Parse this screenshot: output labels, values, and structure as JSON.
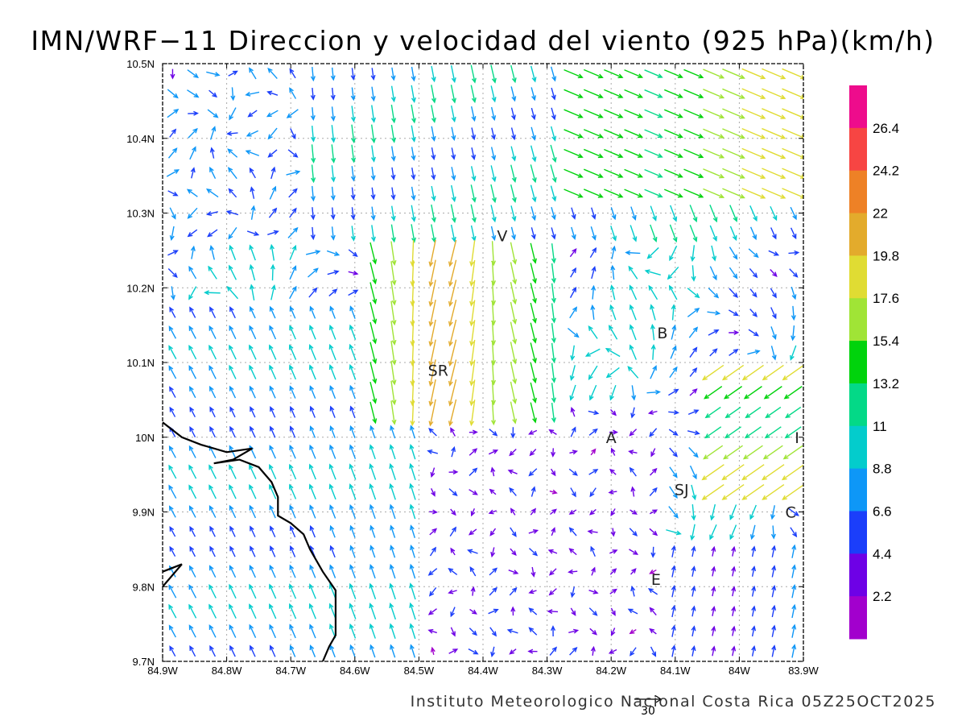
{
  "title": "IMN/WRF−11 Direccion y velocidad del viento (925 hPa)(km/h)",
  "footer": "Instituto Meteorologico Nacional Costa Rica 05Z25OCT2025",
  "reference_vector_label": "30",
  "cities": [
    "V",
    "B",
    "SR",
    "A",
    "I",
    "SJ",
    "C",
    "E"
  ],
  "axes": {
    "lon_ticks": [
      "84.9W",
      "84.8W",
      "84.7W",
      "84.6W",
      "84.5W",
      "84.4W",
      "84.3W",
      "84.2W",
      "84.1W",
      "84W",
      "83.9W"
    ],
    "lat_ticks": [
      "10.5N",
      "10.4N",
      "10.3N",
      "10.2N",
      "10.1N",
      "10N",
      "9.9N",
      "9.8N",
      "9.7N"
    ]
  },
  "colorbar": {
    "labels": [
      "26.4",
      "24.2",
      "22",
      "19.8",
      "17.6",
      "15.4",
      "13.2",
      "11",
      "8.8",
      "6.6",
      "4.4",
      "2.2"
    ],
    "colors": [
      "#ee0c8c",
      "#f74543",
      "#ee8126",
      "#e3ab2c",
      "#e0dc33",
      "#a0e436",
      "#00d30c",
      "#03d987",
      "#03cccc",
      "#0e97f7",
      "#1b3efa",
      "#6e01e6",
      "#a200cd"
    ]
  },
  "chart_data": {
    "type": "vector_field",
    "title": "IMN/WRF−11 Direccion y velocidad del viento (925 hPa)(km/h)",
    "units": "km/h",
    "level": "925 hPa",
    "lon_range": [
      -84.9,
      -83.9
    ],
    "lat_range": [
      9.7,
      10.5
    ],
    "speed_bins": [
      2.2,
      4.4,
      6.6,
      8.8,
      11,
      13.2,
      15.4,
      17.6,
      19.8,
      22,
      24.2,
      26.4
    ],
    "reference_vector": 30,
    "cities": [
      {
        "label": "V",
        "lon": -84.37,
        "lat": 10.27
      },
      {
        "label": "B",
        "lon": -84.12,
        "lat": 10.14
      },
      {
        "label": "SR",
        "lon": -84.47,
        "lat": 10.09
      },
      {
        "label": "A",
        "lon": -84.2,
        "lat": 10.0
      },
      {
        "label": "I",
        "lon": -83.91,
        "lat": 10.0
      },
      {
        "label": "SJ",
        "lon": -84.09,
        "lat": 9.93
      },
      {
        "label": "C",
        "lon": -83.92,
        "lat": 9.9
      },
      {
        "label": "E",
        "lon": -84.13,
        "lat": 9.81
      }
    ],
    "coastline": [
      [
        -84.9,
        10.02
      ],
      [
        -84.87,
        10.0
      ],
      [
        -84.84,
        9.99
      ],
      [
        -84.8,
        9.98
      ],
      [
        -84.76,
        9.985
      ],
      [
        -84.79,
        9.97
      ],
      [
        -84.82,
        9.965
      ],
      [
        -84.78,
        9.97
      ],
      [
        -84.75,
        9.96
      ],
      [
        -84.73,
        9.94
      ],
      [
        -84.72,
        9.92
      ],
      [
        -84.72,
        9.895
      ],
      [
        -84.7,
        9.885
      ],
      [
        -84.68,
        9.87
      ],
      [
        -84.67,
        9.85
      ],
      [
        -84.65,
        9.82
      ],
      [
        -84.63,
        9.795
      ],
      [
        -84.63,
        9.77
      ],
      [
        -84.63,
        9.735
      ],
      [
        -84.64,
        9.72
      ],
      [
        -84.65,
        9.7
      ]
    ],
    "peninsula_outline": [
      [
        -84.9,
        9.82
      ],
      [
        -84.87,
        9.83
      ],
      [
        -84.9,
        9.8
      ]
    ]
  }
}
